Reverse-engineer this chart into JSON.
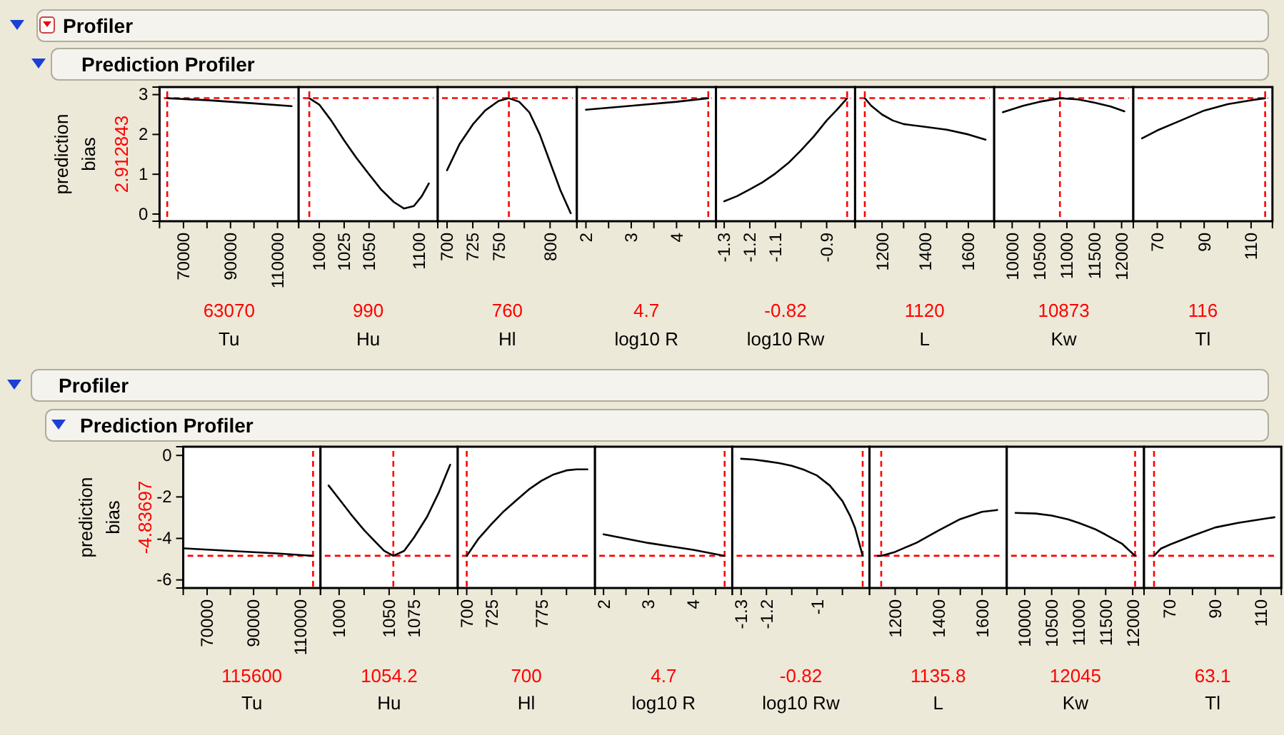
{
  "chart_data": [
    {
      "type": "line",
      "annotations": [
        "Profiler",
        "Prediction Profiler"
      ],
      "xlabel": "Tu",
      "ylabel": "prediction bias",
      "xlim": [
        59800,
        119000
      ],
      "ylim": [
        -0.18,
        3.19
      ],
      "yticks": [
        0,
        1,
        2,
        3
      ],
      "xticks": [
        70000,
        {
          "value": 80000,
          "label": null
        },
        90000,
        {
          "value": 100000,
          "label": null
        },
        110000
      ],
      "series": [
        {
          "color": "#000000",
          "x": [
            63070,
            80000,
            100000,
            116000
          ],
          "values": [
            2.91,
            2.86,
            2.78,
            2.71
          ]
        }
      ],
      "ref_lines": [
        {
          "axis": "y",
          "value": 2.912843,
          "label": "2.912843",
          "color": "#ff0000",
          "line_style": "dashed"
        },
        {
          "axis": "x",
          "value": 63070,
          "label": "63070",
          "color": "#ff0000",
          "line_style": "dashed"
        }
      ]
    },
    {
      "type": "line",
      "xlabel": "Hu",
      "xlim": [
        979.3,
        1119
      ],
      "ylim": [
        -0.18,
        3.19
      ],
      "tick_labels": "x",
      "xticks": [
        1000,
        1025,
        1050,
        {
          "value": 1075,
          "label": null
        },
        1100
      ],
      "series": [
        {
          "color": "#000000",
          "x": [
            990,
            1000,
            1012,
            1025,
            1037,
            1050,
            1062,
            1075,
            1085,
            1095,
            1103,
            1110
          ],
          "values": [
            2.91,
            2.75,
            2.35,
            1.85,
            1.42,
            1.0,
            0.62,
            0.3,
            0.14,
            0.2,
            0.45,
            0.77
          ]
        }
      ],
      "ref_lines": [
        {
          "axis": "y",
          "value": 2.912843,
          "color": "#ff0000",
          "line_style": "dashed"
        },
        {
          "axis": "x",
          "value": 990,
          "label": "990",
          "color": "#ff0000",
          "line_style": "dashed"
        }
      ]
    },
    {
      "type": "line",
      "xlabel": "Hl",
      "xlim": [
        691,
        826
      ],
      "ylim": [
        -0.18,
        3.19
      ],
      "tick_labels": "x",
      "xticks": [
        700,
        725,
        750,
        {
          "value": 775,
          "label": null
        },
        800
      ],
      "series": [
        {
          "color": "#000000",
          "x": [
            700,
            712,
            725,
            737,
            750,
            760,
            770,
            780,
            790,
            800,
            810,
            820
          ],
          "values": [
            1.1,
            1.75,
            2.25,
            2.6,
            2.84,
            2.91,
            2.82,
            2.55,
            2.0,
            1.3,
            0.6,
            0.02
          ]
        }
      ],
      "ref_lines": [
        {
          "axis": "y",
          "value": 2.912843,
          "color": "#ff0000",
          "line_style": "dashed"
        },
        {
          "axis": "x",
          "value": 760,
          "label": "760",
          "color": "#ff0000",
          "line_style": "dashed"
        }
      ]
    },
    {
      "type": "line",
      "xlabel": "log10 R",
      "xlim": [
        1.8,
        4.87
      ],
      "ylim": [
        -0.18,
        3.19
      ],
      "tick_labels": "x",
      "xticks": [
        2,
        {
          "value": 2.5,
          "label": null
        },
        3,
        {
          "value": 3.5,
          "label": null
        },
        4,
        {
          "value": 4.5,
          "label": null
        }
      ],
      "series": [
        {
          "color": "#000000",
          "x": [
            2,
            3,
            4,
            4.7
          ],
          "values": [
            2.62,
            2.72,
            2.82,
            2.91
          ]
        }
      ],
      "ref_lines": [
        {
          "axis": "y",
          "value": 2.912843,
          "color": "#ff0000",
          "line_style": "dashed"
        },
        {
          "axis": "x",
          "value": 4.7,
          "label": "4.7",
          "color": "#ff0000",
          "line_style": "dashed"
        }
      ]
    },
    {
      "type": "line",
      "xlabel": "log10 Rw",
      "xlim": [
        -1.332,
        -0.789
      ],
      "ylim": [
        -0.18,
        3.19
      ],
      "tick_labels": "x",
      "xticks": [
        -1.3,
        -1.2,
        -1.1,
        {
          "value": -1,
          "label": null
        },
        -0.9
      ],
      "series": [
        {
          "color": "#000000",
          "x": [
            -1.3,
            -1.25,
            -1.2,
            -1.15,
            -1.1,
            -1.05,
            -1.0,
            -0.95,
            -0.9,
            -0.86,
            -0.82
          ],
          "values": [
            0.32,
            0.45,
            0.62,
            0.8,
            1.02,
            1.28,
            1.6,
            1.95,
            2.35,
            2.62,
            2.91
          ]
        }
      ],
      "ref_lines": [
        {
          "axis": "y",
          "value": 2.912843,
          "color": "#ff0000",
          "line_style": "dashed"
        },
        {
          "axis": "x",
          "value": -0.82,
          "label": "-0.82",
          "color": "#ff0000",
          "line_style": "dashed"
        }
      ]
    },
    {
      "type": "line",
      "xlabel": "L",
      "xlim": [
        1075,
        1720
      ],
      "ylim": [
        -0.18,
        3.19
      ],
      "tick_labels": "x",
      "xticks": [
        1200,
        {
          "value": 1300,
          "label": null
        },
        1400,
        {
          "value": 1500,
          "label": null
        },
        1600
      ],
      "series": [
        {
          "color": "#000000",
          "x": [
            1120,
            1150,
            1200,
            1250,
            1300,
            1400,
            1500,
            1600,
            1680
          ],
          "values": [
            2.91,
            2.72,
            2.5,
            2.35,
            2.26,
            2.19,
            2.12,
            2.0,
            1.87
          ]
        }
      ],
      "ref_lines": [
        {
          "axis": "y",
          "value": 2.912843,
          "color": "#ff0000",
          "line_style": "dashed"
        },
        {
          "axis": "x",
          "value": 1120,
          "label": "1120",
          "color": "#ff0000",
          "line_style": "dashed"
        }
      ]
    },
    {
      "type": "line",
      "xlabel": "Kw",
      "xlim": [
        9672,
        12214
      ],
      "ylim": [
        -0.18,
        3.19
      ],
      "tick_labels": "x",
      "xticks": [
        10000,
        10500,
        11000,
        11500,
        12000
      ],
      "series": [
        {
          "color": "#000000",
          "x": [
            9830,
            10200,
            10500,
            10873,
            11200,
            11500,
            11800,
            12050
          ],
          "values": [
            2.56,
            2.72,
            2.82,
            2.91,
            2.88,
            2.8,
            2.7,
            2.58
          ]
        }
      ],
      "ref_lines": [
        {
          "axis": "y",
          "value": 2.912843,
          "color": "#ff0000",
          "line_style": "dashed"
        },
        {
          "axis": "x",
          "value": 10873,
          "label": "10873",
          "color": "#ff0000",
          "line_style": "dashed"
        }
      ]
    },
    {
      "type": "line",
      "xlabel": "Tl",
      "xlim": [
        59.8,
        119.1
      ],
      "ylim": [
        -0.18,
        3.19
      ],
      "tick_labels": "x",
      "xticks": [
        70,
        {
          "value": 80,
          "label": null
        },
        90,
        {
          "value": 100,
          "label": null
        },
        110
      ],
      "series": [
        {
          "color": "#000000",
          "x": [
            63.5,
            70,
            80,
            90,
            100,
            110,
            116
          ],
          "values": [
            1.9,
            2.1,
            2.35,
            2.6,
            2.76,
            2.86,
            2.91
          ]
        }
      ],
      "ref_lines": [
        {
          "axis": "y",
          "value": 2.912843,
          "color": "#ff0000",
          "line_style": "dashed"
        },
        {
          "axis": "x",
          "value": 116,
          "label": "116",
          "color": "#ff0000",
          "line_style": "dashed"
        }
      ]
    },
    {
      "type": "line",
      "annotations": [
        "Profiler",
        "Prediction Profiler"
      ],
      "xlabel": "Tu",
      "ylabel": "prediction bias",
      "xlim": [
        59740,
        118800
      ],
      "ylim": [
        -6.39,
        0.42
      ],
      "yticks": [
        -6,
        -4,
        -2,
        0
      ],
      "xticks": [
        70000,
        {
          "value": 80000,
          "label": null
        },
        90000,
        {
          "value": 100000,
          "label": null
        },
        110000
      ],
      "series": [
        {
          "color": "#000000",
          "x": [
            60400,
            80000,
            100000,
            115600
          ],
          "values": [
            -4.48,
            -4.6,
            -4.72,
            -4.84
          ]
        }
      ],
      "ref_lines": [
        {
          "axis": "y",
          "value": -4.83697,
          "label": "-4.83697",
          "color": "#ff0000",
          "line_style": "dashed"
        },
        {
          "axis": "x",
          "value": 115600,
          "label": "115600",
          "color": "#ff0000",
          "line_style": "dashed"
        }
      ]
    },
    {
      "type": "line",
      "xlabel": "Hu",
      "xlim": [
        981.4,
        1118.6
      ],
      "ylim": [
        -6.39,
        0.42
      ],
      "tick_labels": "x",
      "xticks": [
        1000,
        {
          "value": 1025,
          "label": null
        },
        1050,
        1075,
        {
          "value": 1100,
          "label": null
        }
      ],
      "series": [
        {
          "color": "#000000",
          "x": [
            989.5,
            1000,
            1012,
            1025,
            1037,
            1045,
            1054.2,
            1065,
            1075,
            1088,
            1100,
            1111
          ],
          "values": [
            -1.45,
            -2.1,
            -2.85,
            -3.6,
            -4.2,
            -4.6,
            -4.84,
            -4.6,
            -3.95,
            -2.95,
            -1.75,
            -0.45
          ]
        }
      ],
      "ref_lines": [
        {
          "axis": "y",
          "value": -4.83697,
          "color": "#ff0000",
          "line_style": "dashed"
        },
        {
          "axis": "x",
          "value": 1054.2,
          "label": "1054.2",
          "color": "#ff0000",
          "line_style": "dashed"
        }
      ]
    },
    {
      "type": "line",
      "xlabel": "Hl",
      "xlim": [
        691,
        828.6
      ],
      "ylim": [
        -6.39,
        0.42
      ],
      "tick_labels": "x",
      "xticks": [
        700,
        725,
        {
          "value": 750,
          "label": null
        },
        775,
        {
          "value": 800,
          "label": null
        }
      ],
      "series": [
        {
          "color": "#000000",
          "x": [
            700,
            712,
            725,
            737,
            750,
            762,
            775,
            787,
            800,
            810,
            821
          ],
          "values": [
            -4.84,
            -4.0,
            -3.3,
            -2.7,
            -2.15,
            -1.65,
            -1.22,
            -0.92,
            -0.72,
            -0.67,
            -0.67
          ]
        }
      ],
      "ref_lines": [
        {
          "axis": "y",
          "value": -4.83697,
          "color": "#ff0000",
          "line_style": "dashed"
        },
        {
          "axis": "x",
          "value": 700,
          "label": "700",
          "color": "#ff0000",
          "line_style": "dashed"
        }
      ]
    },
    {
      "type": "line",
      "xlabel": "log10 R",
      "xlim": [
        1.81,
        4.87
      ],
      "ylim": [
        -6.39,
        0.42
      ],
      "tick_labels": "x",
      "xticks": [
        2,
        {
          "value": 2.5,
          "label": null
        },
        3,
        {
          "value": 3.5,
          "label": null
        },
        4,
        {
          "value": 4.5,
          "label": null
        }
      ],
      "series": [
        {
          "color": "#000000",
          "x": [
            2,
            3,
            4,
            4.7
          ],
          "values": [
            -3.8,
            -4.22,
            -4.55,
            -4.84
          ]
        }
      ],
      "ref_lines": [
        {
          "axis": "y",
          "value": -4.83697,
          "color": "#ff0000",
          "line_style": "dashed"
        },
        {
          "axis": "x",
          "value": 4.7,
          "label": "4.7",
          "color": "#ff0000",
          "line_style": "dashed"
        }
      ]
    },
    {
      "type": "line",
      "xlabel": "log10 Rw",
      "xlim": [
        -1.335,
        -0.793
      ],
      "ylim": [
        -6.39,
        0.42
      ],
      "tick_labels": "x",
      "xticks": [
        -1.3,
        -1.2,
        {
          "value": -1.1,
          "label": null
        },
        -1,
        {
          "value": -0.9,
          "label": null
        }
      ],
      "series": [
        {
          "color": "#000000",
          "x": [
            -1.3,
            -1.25,
            -1.2,
            -1.15,
            -1.1,
            -1.05,
            -1.0,
            -0.95,
            -0.9,
            -0.87,
            -0.85,
            -0.82
          ],
          "values": [
            -0.16,
            -0.2,
            -0.28,
            -0.37,
            -0.5,
            -0.7,
            -0.97,
            -1.45,
            -2.2,
            -2.9,
            -3.5,
            -4.84
          ]
        }
      ],
      "ref_lines": [
        {
          "axis": "y",
          "value": -4.83697,
          "color": "#ff0000",
          "line_style": "dashed"
        },
        {
          "axis": "x",
          "value": -0.82,
          "label": "-0.82",
          "color": "#ff0000",
          "line_style": "dashed"
        }
      ]
    },
    {
      "type": "line",
      "xlabel": "L",
      "xlim": [
        1082,
        1714
      ],
      "ylim": [
        -6.39,
        0.42
      ],
      "tick_labels": "x",
      "xticks": [
        1200,
        {
          "value": 1300,
          "label": null
        },
        1400,
        {
          "value": 1500,
          "label": null
        },
        1600
      ],
      "series": [
        {
          "color": "#000000",
          "x": [
            1120,
            1135.8,
            1200,
            1300,
            1400,
            1500,
            1600,
            1670
          ],
          "values": [
            -4.84,
            -4.84,
            -4.65,
            -4.2,
            -3.62,
            -3.07,
            -2.72,
            -2.63
          ]
        }
      ],
      "ref_lines": [
        {
          "axis": "y",
          "value": -4.83697,
          "color": "#ff0000",
          "line_style": "dashed"
        },
        {
          "axis": "x",
          "value": 1135.8,
          "label": "1135.8",
          "color": "#ff0000",
          "line_style": "dashed"
        }
      ]
    },
    {
      "type": "line",
      "xlabel": "Kw",
      "xlim": [
        9668,
        12210
      ],
      "ylim": [
        -6.39,
        0.42
      ],
      "tick_labels": "x",
      "xticks": [
        10000,
        10500,
        11000,
        11500,
        12000
      ],
      "series": [
        {
          "color": "#000000",
          "x": [
            9830,
            10200,
            10500,
            10800,
            11000,
            11300,
            11500,
            11800,
            12045
          ],
          "values": [
            -2.77,
            -2.8,
            -2.9,
            -3.08,
            -3.25,
            -3.55,
            -3.82,
            -4.25,
            -4.84
          ]
        }
      ],
      "ref_lines": [
        {
          "axis": "y",
          "value": -4.83697,
          "color": "#ff0000",
          "line_style": "dashed"
        },
        {
          "axis": "x",
          "value": 12045,
          "label": "12045",
          "color": "#ff0000",
          "line_style": "dashed"
        }
      ]
    },
    {
      "type": "line",
      "xlabel": "Tl",
      "xlim": [
        58.7,
        119
      ],
      "ylim": [
        -6.39,
        0.42
      ],
      "tick_labels": "x",
      "xticks": [
        70,
        {
          "value": 80,
          "label": null
        },
        90,
        {
          "value": 100,
          "label": null
        },
        110
      ],
      "series": [
        {
          "color": "#000000",
          "x": [
            63.1,
            66,
            70,
            80,
            90,
            100,
            110,
            116
          ],
          "values": [
            -4.84,
            -4.5,
            -4.3,
            -3.87,
            -3.47,
            -3.25,
            -3.08,
            -2.98
          ]
        }
      ],
      "ref_lines": [
        {
          "axis": "y",
          "value": -4.83697,
          "color": "#ff0000",
          "line_style": "dashed"
        },
        {
          "axis": "x",
          "value": 63.1,
          "label": "63.1",
          "color": "#ff0000",
          "line_style": "dashed"
        }
      ]
    }
  ]
}
